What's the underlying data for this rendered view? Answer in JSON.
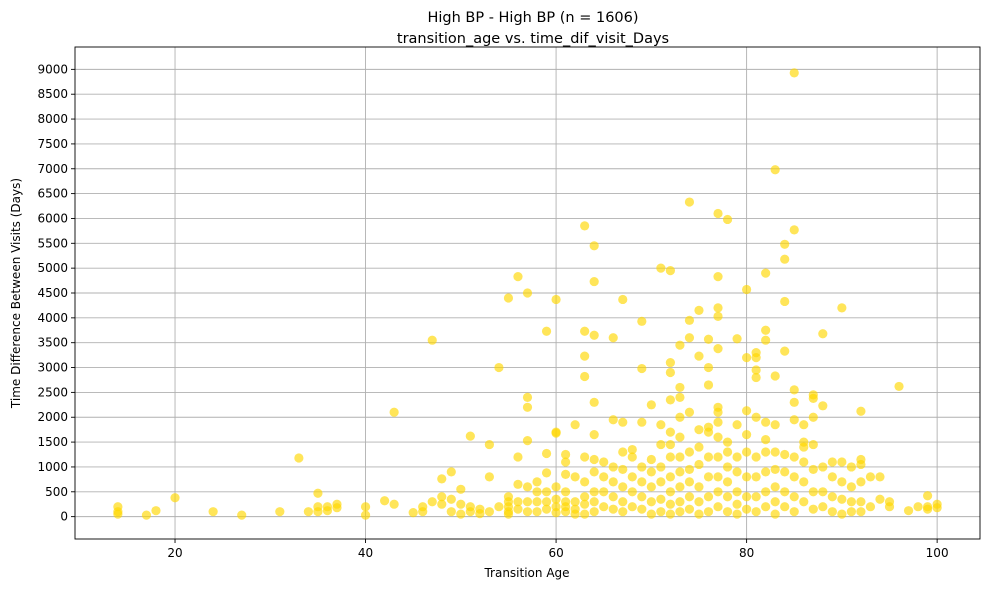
{
  "chart_data": {
    "type": "scatter",
    "title": "High BP - High BP (n = 1606)",
    "subtitle": "transition_age vs. time_dif_visit_Days",
    "xlabel": "Transition Age",
    "ylabel": "Time Difference Between Visits (Days)",
    "xlim": [
      9.5,
      104.5
    ],
    "ylim": [
      -450,
      9450
    ],
    "xticks": [
      20,
      40,
      60,
      80,
      100
    ],
    "yticks": [
      0,
      500,
      1000,
      1500,
      2000,
      2500,
      3000,
      3500,
      4000,
      4500,
      5000,
      5500,
      6000,
      6500,
      7000,
      7500,
      8000,
      8500,
      9000
    ],
    "grid": true,
    "point_color": "#FFD700",
    "point_alpha": 0.65,
    "points": [
      [
        14,
        200
      ],
      [
        14,
        100
      ],
      [
        14,
        50
      ],
      [
        17,
        30
      ],
      [
        18,
        120
      ],
      [
        20,
        380
      ],
      [
        24,
        100
      ],
      [
        27,
        30
      ],
      [
        31,
        100
      ],
      [
        33,
        1180
      ],
      [
        34,
        100
      ],
      [
        35,
        470
      ],
      [
        35,
        200
      ],
      [
        35,
        100
      ],
      [
        36,
        200
      ],
      [
        36,
        120
      ],
      [
        37,
        250
      ],
      [
        37,
        180
      ],
      [
        40,
        200
      ],
      [
        40,
        30
      ],
      [
        42,
        320
      ],
      [
        43,
        2100
      ],
      [
        43,
        250
      ],
      [
        45,
        80
      ],
      [
        46,
        200
      ],
      [
        46,
        100
      ],
      [
        47,
        3550
      ],
      [
        47,
        300
      ],
      [
        48,
        760
      ],
      [
        48,
        400
      ],
      [
        48,
        250
      ],
      [
        49,
        900
      ],
      [
        49,
        350
      ],
      [
        49,
        100
      ],
      [
        50,
        550
      ],
      [
        50,
        250
      ],
      [
        50,
        50
      ],
      [
        51,
        1620
      ],
      [
        51,
        200
      ],
      [
        51,
        100
      ],
      [
        52,
        150
      ],
      [
        52,
        60
      ],
      [
        53,
        1450
      ],
      [
        53,
        800
      ],
      [
        53,
        100
      ],
      [
        54,
        3000
      ],
      [
        54,
        200
      ],
      [
        55,
        4400
      ],
      [
        55,
        400
      ],
      [
        55,
        300
      ],
      [
        55,
        200
      ],
      [
        55,
        100
      ],
      [
        55,
        50
      ],
      [
        56,
        4830
      ],
      [
        56,
        1200
      ],
      [
        56,
        650
      ],
      [
        56,
        300
      ],
      [
        56,
        150
      ],
      [
        57,
        4500
      ],
      [
        57,
        2400
      ],
      [
        57,
        2200
      ],
      [
        57,
        1530
      ],
      [
        57,
        600
      ],
      [
        57,
        300
      ],
      [
        57,
        100
      ],
      [
        58,
        700
      ],
      [
        58,
        500
      ],
      [
        58,
        300
      ],
      [
        58,
        100
      ],
      [
        59,
        3730
      ],
      [
        59,
        1270
      ],
      [
        59,
        880
      ],
      [
        59,
        500
      ],
      [
        59,
        300
      ],
      [
        59,
        150
      ],
      [
        60,
        4370
      ],
      [
        60,
        1700
      ],
      [
        60,
        1680
      ],
      [
        60,
        600
      ],
      [
        60,
        350
      ],
      [
        60,
        200
      ],
      [
        60,
        80
      ],
      [
        61,
        1250
      ],
      [
        61,
        1100
      ],
      [
        61,
        850
      ],
      [
        61,
        500
      ],
      [
        61,
        300
      ],
      [
        61,
        200
      ],
      [
        61,
        100
      ],
      [
        62,
        1850
      ],
      [
        62,
        800
      ],
      [
        62,
        300
      ],
      [
        62,
        150
      ],
      [
        62,
        50
      ],
      [
        63,
        5850
      ],
      [
        63,
        3730
      ],
      [
        63,
        3230
      ],
      [
        63,
        2820
      ],
      [
        63,
        1200
      ],
      [
        63,
        700
      ],
      [
        63,
        400
      ],
      [
        63,
        250
      ],
      [
        63,
        50
      ],
      [
        64,
        5450
      ],
      [
        64,
        4730
      ],
      [
        64,
        3650
      ],
      [
        64,
        2300
      ],
      [
        64,
        1650
      ],
      [
        64,
        1150
      ],
      [
        64,
        900
      ],
      [
        64,
        500
      ],
      [
        64,
        300
      ],
      [
        64,
        100
      ],
      [
        65,
        1100
      ],
      [
        65,
        800
      ],
      [
        65,
        500
      ],
      [
        65,
        200
      ],
      [
        66,
        3600
      ],
      [
        66,
        1950
      ],
      [
        66,
        1000
      ],
      [
        66,
        700
      ],
      [
        66,
        400
      ],
      [
        66,
        150
      ],
      [
        67,
        4370
      ],
      [
        67,
        1900
      ],
      [
        67,
        1300
      ],
      [
        67,
        950
      ],
      [
        67,
        600
      ],
      [
        67,
        300
      ],
      [
        67,
        100
      ],
      [
        68,
        1350
      ],
      [
        68,
        1200
      ],
      [
        68,
        800
      ],
      [
        68,
        500
      ],
      [
        68,
        200
      ],
      [
        69,
        3930
      ],
      [
        69,
        2980
      ],
      [
        69,
        1900
      ],
      [
        69,
        1000
      ],
      [
        69,
        700
      ],
      [
        69,
        400
      ],
      [
        69,
        150
      ],
      [
        70,
        2250
      ],
      [
        70,
        1150
      ],
      [
        70,
        900
      ],
      [
        70,
        600
      ],
      [
        70,
        300
      ],
      [
        70,
        50
      ],
      [
        71,
        5000
      ],
      [
        71,
        1850
      ],
      [
        71,
        1450
      ],
      [
        71,
        1000
      ],
      [
        71,
        700
      ],
      [
        71,
        350
      ],
      [
        71,
        100
      ],
      [
        72,
        4950
      ],
      [
        72,
        3100
      ],
      [
        72,
        2900
      ],
      [
        72,
        2350
      ],
      [
        72,
        1700
      ],
      [
        72,
        1450
      ],
      [
        72,
        1200
      ],
      [
        72,
        800
      ],
      [
        72,
        500
      ],
      [
        72,
        250
      ],
      [
        72,
        50
      ],
      [
        73,
        3450
      ],
      [
        73,
        2600
      ],
      [
        73,
        2400
      ],
      [
        73,
        2000
      ],
      [
        73,
        1600
      ],
      [
        73,
        1200
      ],
      [
        73,
        900
      ],
      [
        73,
        600
      ],
      [
        73,
        300
      ],
      [
        73,
        100
      ],
      [
        74,
        6330
      ],
      [
        74,
        3950
      ],
      [
        74,
        3600
      ],
      [
        74,
        2100
      ],
      [
        74,
        1300
      ],
      [
        74,
        950
      ],
      [
        74,
        700
      ],
      [
        74,
        400
      ],
      [
        74,
        150
      ],
      [
        75,
        4150
      ],
      [
        75,
        3230
      ],
      [
        75,
        1750
      ],
      [
        75,
        1400
      ],
      [
        75,
        1050
      ],
      [
        75,
        600
      ],
      [
        75,
        300
      ],
      [
        75,
        50
      ],
      [
        76,
        3570
      ],
      [
        76,
        3000
      ],
      [
        76,
        2650
      ],
      [
        76,
        1800
      ],
      [
        76,
        1700
      ],
      [
        76,
        1200
      ],
      [
        76,
        800
      ],
      [
        76,
        400
      ],
      [
        76,
        100
      ],
      [
        77,
        6100
      ],
      [
        77,
        4830
      ],
      [
        77,
        4200
      ],
      [
        77,
        4030
      ],
      [
        77,
        3380
      ],
      [
        77,
        2200
      ],
      [
        77,
        2100
      ],
      [
        77,
        1900
      ],
      [
        77,
        1600
      ],
      [
        77,
        1200
      ],
      [
        77,
        800
      ],
      [
        77,
        500
      ],
      [
        77,
        200
      ],
      [
        78,
        5980
      ],
      [
        78,
        1500
      ],
      [
        78,
        1300
      ],
      [
        78,
        1000
      ],
      [
        78,
        700
      ],
      [
        78,
        400
      ],
      [
        78,
        100
      ],
      [
        79,
        3580
      ],
      [
        79,
        1850
      ],
      [
        79,
        1200
      ],
      [
        79,
        900
      ],
      [
        79,
        500
      ],
      [
        79,
        250
      ],
      [
        79,
        50
      ],
      [
        80,
        4570
      ],
      [
        80,
        3200
      ],
      [
        80,
        2130
      ],
      [
        80,
        1650
      ],
      [
        80,
        1300
      ],
      [
        80,
        800
      ],
      [
        80,
        400
      ],
      [
        80,
        150
      ],
      [
        81,
        3300
      ],
      [
        81,
        3200
      ],
      [
        81,
        2950
      ],
      [
        81,
        2800
      ],
      [
        81,
        2000
      ],
      [
        81,
        1200
      ],
      [
        81,
        800
      ],
      [
        81,
        400
      ],
      [
        81,
        100
      ],
      [
        82,
        4900
      ],
      [
        82,
        3750
      ],
      [
        82,
        3550
      ],
      [
        82,
        1900
      ],
      [
        82,
        1550
      ],
      [
        82,
        1300
      ],
      [
        82,
        900
      ],
      [
        82,
        500
      ],
      [
        82,
        200
      ],
      [
        83,
        6980
      ],
      [
        83,
        2830
      ],
      [
        83,
        1850
      ],
      [
        83,
        1300
      ],
      [
        83,
        950
      ],
      [
        83,
        600
      ],
      [
        83,
        300
      ],
      [
        83,
        50
      ],
      [
        84,
        5480
      ],
      [
        84,
        5180
      ],
      [
        84,
        4330
      ],
      [
        84,
        3330
      ],
      [
        84,
        1250
      ],
      [
        84,
        900
      ],
      [
        84,
        500
      ],
      [
        84,
        200
      ],
      [
        85,
        8930
      ],
      [
        85,
        5770
      ],
      [
        85,
        2550
      ],
      [
        85,
        2300
      ],
      [
        85,
        1950
      ],
      [
        85,
        1200
      ],
      [
        85,
        800
      ],
      [
        85,
        400
      ],
      [
        85,
        100
      ],
      [
        86,
        1850
      ],
      [
        86,
        1500
      ],
      [
        86,
        1400
      ],
      [
        86,
        1100
      ],
      [
        86,
        700
      ],
      [
        86,
        300
      ],
      [
        87,
        2450
      ],
      [
        87,
        2380
      ],
      [
        87,
        2000
      ],
      [
        87,
        1450
      ],
      [
        87,
        950
      ],
      [
        87,
        500
      ],
      [
        87,
        150
      ],
      [
        88,
        3680
      ],
      [
        88,
        2230
      ],
      [
        88,
        1000
      ],
      [
        88,
        500
      ],
      [
        88,
        200
      ],
      [
        89,
        1100
      ],
      [
        89,
        800
      ],
      [
        89,
        400
      ],
      [
        89,
        100
      ],
      [
        90,
        4200
      ],
      [
        90,
        1100
      ],
      [
        90,
        700
      ],
      [
        90,
        350
      ],
      [
        90,
        50
      ],
      [
        91,
        1000
      ],
      [
        91,
        600
      ],
      [
        91,
        300
      ],
      [
        91,
        100
      ],
      [
        92,
        2120
      ],
      [
        92,
        1150
      ],
      [
        92,
        1050
      ],
      [
        92,
        700
      ],
      [
        92,
        300
      ],
      [
        92,
        100
      ],
      [
        93,
        800
      ],
      [
        93,
        200
      ],
      [
        94,
        800
      ],
      [
        94,
        350
      ],
      [
        95,
        300
      ],
      [
        95,
        200
      ],
      [
        96,
        2620
      ],
      [
        97,
        120
      ],
      [
        98,
        200
      ],
      [
        99,
        420
      ],
      [
        99,
        200
      ],
      [
        99,
        150
      ],
      [
        100,
        250
      ],
      [
        100,
        180
      ]
    ]
  }
}
